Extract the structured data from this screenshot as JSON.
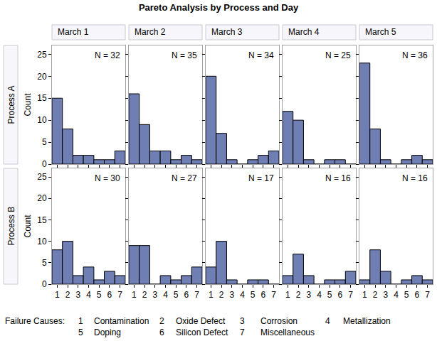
{
  "title": "Pareto Analysis by Process and Day",
  "columns": [
    "March 1",
    "March 2",
    "March 3",
    "March 4",
    "March 5"
  ],
  "rows": [
    "Process A",
    "Process B"
  ],
  "failure_causes": {
    "label": "Failure Causes:",
    "items": [
      {
        "code": "1",
        "name": "Contamination"
      },
      {
        "code": "2",
        "name": "Oxide Defect"
      },
      {
        "code": "3",
        "name": "Corrosion"
      },
      {
        "code": "4",
        "name": "Metallization"
      },
      {
        "code": "5",
        "name": "Doping"
      },
      {
        "code": "6",
        "name": "Silicon Defect"
      },
      {
        "code": "7",
        "name": "Miscellaneous"
      }
    ]
  },
  "chart_data": [
    {
      "type": "bar",
      "categories": [
        "1",
        "2",
        "3",
        "4",
        "5",
        "6",
        "7"
      ],
      "values": [
        15,
        8,
        2,
        2,
        1,
        1,
        3
      ],
      "color": "#6f7eb3",
      "annotation": "N = 32",
      "ylabel": "Count",
      "ylim": [
        0,
        27
      ],
      "yticks": [
        0,
        5,
        10,
        15,
        20,
        25
      ],
      "tick_labels": "y"
    },
    {
      "type": "bar",
      "categories": [
        "1",
        "2",
        "3",
        "4",
        "5",
        "6",
        "7"
      ],
      "values": [
        16,
        9,
        3,
        3,
        1,
        2,
        1
      ],
      "color": "#6f7eb3",
      "annotation": "N = 35",
      "ylim": [
        0,
        27
      ],
      "yticks": [
        0,
        5,
        10,
        15,
        20,
        25
      ],
      "tick_labels": false
    },
    {
      "type": "bar",
      "categories": [
        "1",
        "2",
        "3",
        "4",
        "5",
        "6",
        "7"
      ],
      "values": [
        20,
        7,
        1,
        0,
        1,
        2,
        3
      ],
      "color": "#6f7eb3",
      "annotation": "N = 34",
      "ylim": [
        0,
        27
      ],
      "yticks": [
        0,
        5,
        10,
        15,
        20,
        25
      ],
      "tick_labels": false
    },
    {
      "type": "bar",
      "categories": [
        "1",
        "2",
        "3",
        "4",
        "5",
        "6",
        "7"
      ],
      "values": [
        12,
        10,
        1,
        0,
        1,
        1,
        0
      ],
      "color": "#6f7eb3",
      "annotation": "N = 25",
      "ylim": [
        0,
        27
      ],
      "yticks": [
        0,
        5,
        10,
        15,
        20,
        25
      ],
      "tick_labels": false
    },
    {
      "type": "bar",
      "categories": [
        "1",
        "2",
        "3",
        "4",
        "5",
        "6",
        "7"
      ],
      "values": [
        23,
        8,
        1,
        0,
        1,
        2,
        1
      ],
      "color": "#6f7eb3",
      "annotation": "N = 36",
      "ylim": [
        0,
        27
      ],
      "yticks": [
        0,
        5,
        10,
        15,
        20,
        25
      ],
      "tick_labels": false
    },
    {
      "type": "bar",
      "categories": [
        "1",
        "2",
        "3",
        "4",
        "5",
        "6",
        "7"
      ],
      "values": [
        8,
        10,
        2,
        4,
        1,
        3,
        2
      ],
      "color": "#6f7eb3",
      "annotation": "N = 30",
      "ylabel": "Count",
      "ylim": [
        0,
        27
      ],
      "yticks": [
        0,
        5,
        10,
        15,
        20,
        25
      ],
      "tick_labels": true
    },
    {
      "type": "bar",
      "categories": [
        "1",
        "2",
        "3",
        "4",
        "5",
        "6",
        "7"
      ],
      "values": [
        9,
        9,
        0,
        2,
        1,
        2,
        4
      ],
      "color": "#6f7eb3",
      "annotation": "N = 27",
      "ylim": [
        0,
        27
      ],
      "yticks": [
        0,
        5,
        10,
        15,
        20,
        25
      ],
      "tick_labels": "x"
    },
    {
      "type": "bar",
      "categories": [
        "1",
        "2",
        "3",
        "4",
        "5",
        "6",
        "7"
      ],
      "values": [
        4,
        10,
        1,
        0,
        1,
        1,
        0
      ],
      "color": "#6f7eb3",
      "annotation": "N = 17",
      "ylim": [
        0,
        27
      ],
      "yticks": [
        0,
        5,
        10,
        15,
        20,
        25
      ],
      "tick_labels": "x"
    },
    {
      "type": "bar",
      "categories": [
        "1",
        "2",
        "3",
        "4",
        "5",
        "6",
        "7"
      ],
      "values": [
        2,
        7,
        2,
        0,
        1,
        1,
        3
      ],
      "color": "#6f7eb3",
      "annotation": "N = 16",
      "ylim": [
        0,
        27
      ],
      "yticks": [
        0,
        5,
        10,
        15,
        20,
        25
      ],
      "tick_labels": "x"
    },
    {
      "type": "bar",
      "categories": [
        "1",
        "2",
        "3",
        "4",
        "5",
        "6",
        "7"
      ],
      "values": [
        1,
        8,
        3,
        0,
        1,
        2,
        1
      ],
      "color": "#6f7eb3",
      "annotation": "N = 16",
      "ylim": [
        0,
        27
      ],
      "yticks": [
        0,
        5,
        10,
        15,
        20,
        25
      ],
      "tick_labels": "x"
    }
  ]
}
